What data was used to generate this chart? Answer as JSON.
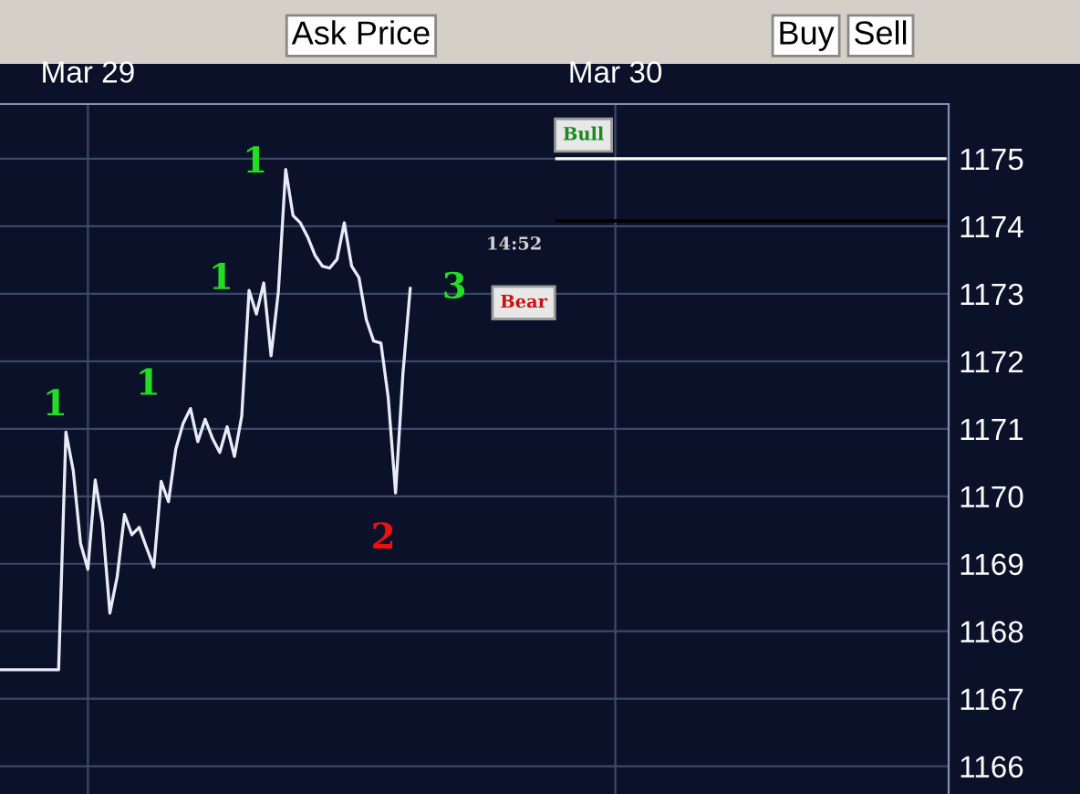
{
  "chart_data": {
    "type": "line",
    "categories": [
      null,
      null,
      null,
      null,
      null,
      null,
      null,
      null,
      null,
      null,
      null,
      null,
      "Mar 29",
      null,
      null,
      null,
      null,
      null,
      null,
      null,
      null,
      null,
      null,
      null,
      null,
      null,
      null,
      null,
      null,
      null,
      null,
      null,
      null,
      null,
      null,
      null,
      null,
      null,
      null,
      null,
      null,
      null,
      null,
      null,
      null,
      null,
      null,
      null,
      null,
      null,
      null,
      null,
      null,
      null,
      null,
      null,
      null,
      null,
      null,
      null,
      null,
      null,
      null,
      null,
      null,
      null,
      null,
      null,
      null,
      null,
      null,
      null,
      null,
      null,
      null,
      null,
      null,
      null,
      null,
      null,
      null,
      null,
      null,
      null,
      "Mar 30",
      null,
      null,
      null,
      null,
      null,
      null,
      null,
      null,
      null,
      null,
      null,
      null,
      null,
      null,
      null,
      null,
      null,
      null,
      null,
      null,
      null,
      null,
      null,
      null,
      null,
      null,
      null,
      null,
      null,
      null,
      null,
      null,
      null,
      null,
      null,
      null,
      null,
      null,
      null,
      null,
      null,
      null,
      null,
      null,
      null
    ],
    "ylim": [
      1165.59,
      1175.81
    ],
    "yticks": [
      1166,
      1167,
      1168,
      1169,
      1170,
      1171,
      1172,
      1173,
      1174,
      1175
    ],
    "grid": true,
    "series": [
      {
        "color": "#e6ecf5",
        "values": [
          1167.43,
          1167.43,
          1167.43,
          1167.43,
          1167.43,
          1167.43,
          1167.43,
          1167.43,
          1167.43,
          1170.95,
          1170.38,
          1169.3,
          1168.92,
          1170.24,
          1169.59,
          1168.27,
          1168.81,
          1169.73,
          1169.43,
          1169.54,
          1169.24,
          1168.95,
          1170.22,
          1169.92,
          1170.7,
          1171.08,
          1171.3,
          1170.81,
          1171.14,
          1170.86,
          1170.65,
          1171.03,
          1170.59,
          1171.19,
          1173.05,
          1172.7,
          1173.16,
          1172.08,
          1173.03,
          1174.84,
          1174.16,
          1174.05,
          1173.84,
          1173.57,
          1173.41,
          1173.38,
          1173.51,
          1174.05,
          1173.41,
          1173.24,
          1172.62,
          1172.3,
          1172.27,
          1171.46,
          1170.05,
          1171.81,
          1173.08,
          null,
          null,
          null,
          null,
          null,
          null,
          null,
          null,
          null,
          null,
          null,
          null,
          null,
          null,
          null,
          null,
          null,
          null,
          null,
          null,
          null,
          null,
          null,
          null,
          null,
          null,
          null,
          null,
          null,
          null,
          null,
          null,
          null,
          null,
          null,
          null,
          null,
          null,
          null,
          null,
          null,
          null,
          null,
          null,
          null,
          null,
          null,
          null,
          null,
          null,
          null,
          null,
          null,
          null,
          null,
          null,
          null,
          null,
          null,
          null,
          null,
          null,
          null,
          null,
          null,
          null,
          null,
          null,
          null,
          null,
          null,
          null,
          null
        ]
      },
      {
        "color": "#ffffff",
        "values": [
          null,
          null,
          null,
          null,
          null,
          null,
          null,
          null,
          null,
          null,
          null,
          null,
          null,
          null,
          null,
          null,
          null,
          null,
          null,
          null,
          null,
          null,
          null,
          null,
          null,
          null,
          null,
          null,
          null,
          null,
          null,
          null,
          null,
          null,
          null,
          null,
          null,
          null,
          null,
          null,
          null,
          null,
          null,
          null,
          null,
          null,
          null,
          null,
          null,
          null,
          null,
          null,
          null,
          null,
          null,
          null,
          null,
          null,
          null,
          null,
          null,
          null,
          null,
          null,
          null,
          null,
          null,
          null,
          null,
          null,
          null,
          null,
          null,
          null,
          null,
          null,
          1175,
          1175,
          1175,
          1175,
          1175,
          1175,
          1175,
          1175,
          1175,
          1175,
          1175,
          1175,
          1175,
          1175,
          1175,
          1175,
          1175,
          1175,
          1175,
          1175,
          1175,
          1175,
          1175,
          1175,
          1175,
          1175,
          1175,
          1175,
          1175,
          1175,
          1175,
          1175,
          1175,
          1175,
          1175,
          1175,
          1175,
          1175,
          1175,
          1175,
          1175,
          1175,
          1175,
          1175,
          1175,
          1175,
          1175,
          1175,
          1175,
          1175,
          1175,
          1175,
          1175,
          1175
        ]
      },
      {
        "color": "#000000",
        "values": [
          null,
          null,
          null,
          null,
          null,
          null,
          null,
          null,
          null,
          null,
          null,
          null,
          null,
          null,
          null,
          null,
          null,
          null,
          null,
          null,
          null,
          null,
          null,
          null,
          null,
          null,
          null,
          null,
          null,
          null,
          null,
          null,
          null,
          null,
          null,
          null,
          null,
          null,
          null,
          null,
          null,
          null,
          null,
          null,
          null,
          null,
          null,
          null,
          null,
          null,
          null,
          null,
          null,
          null,
          null,
          null,
          null,
          null,
          null,
          null,
          null,
          null,
          null,
          null,
          null,
          null,
          null,
          null,
          null,
          null,
          null,
          null,
          null,
          null,
          null,
          null,
          1174.08,
          1174.08,
          1174.08,
          1174.08,
          1174.08,
          1174.08,
          1174.08,
          1174.08,
          1174.08,
          1174.08,
          1174.08,
          1174.08,
          1174.08,
          1174.08,
          1174.08,
          1174.08,
          1174.08,
          1174.08,
          1174.08,
          1174.08,
          1174.08,
          1174.08,
          1174.08,
          1174.08,
          1174.08,
          1174.08,
          1174.08,
          1174.08,
          1174.08,
          1174.08,
          1174.08,
          1174.08,
          1174.08,
          1174.08,
          1174.08,
          1174.08,
          1174.08,
          1174.08,
          1174.08,
          1174.08,
          1174.08,
          1174.08,
          1174.08,
          1174.08,
          1174.08,
          1174.08,
          1174.08,
          1174.08,
          1174.08,
          1174.08,
          1174.08,
          1174.08,
          1174.08,
          1174.08
        ]
      }
    ],
    "annotations": [
      "1",
      "1",
      "1",
      "1",
      "2",
      "3",
      "14:52",
      "Bull",
      "Bear",
      "Ask Price",
      "Buy",
      "Sell"
    ]
  }
}
